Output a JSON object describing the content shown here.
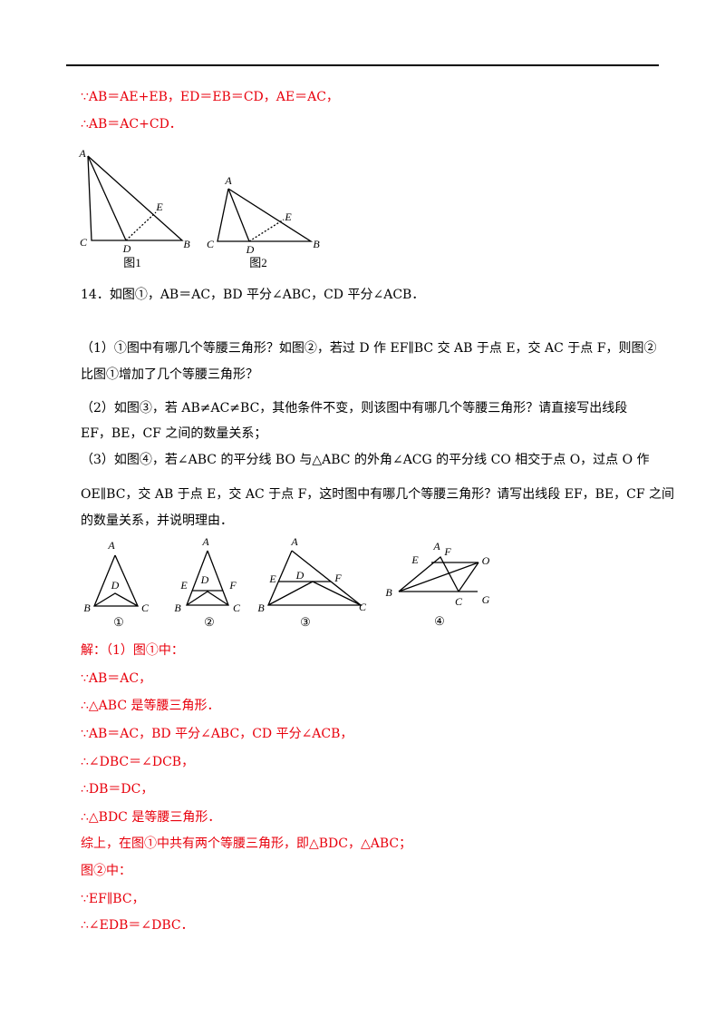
{
  "top_solution": [
    "∵AB＝AE+EB，ED＝EB＝CD，AE＝AC，",
    "∴AB＝AC+CD．"
  ],
  "figures_a": [
    {
      "caption": "图1",
      "labels": [
        "A",
        "C",
        "D",
        "B",
        "E"
      ]
    },
    {
      "caption": "图2",
      "labels": [
        "A",
        "C",
        "D",
        "B",
        "E"
      ]
    }
  ],
  "problem": {
    "stem": "14．如图①，AB＝AC，BD 平分∠ABC，CD 平分∠ACB．",
    "lines": [
      "（1）①图中有哪几个等腰三角形？如图②，若过 D 作 EF∥BC 交 AB 于点 E，交 AC 于点 F，则图②",
      "比图①增加了几个等腰三角形？",
      "（2）如图③，若 AB≠AC≠BC，其他条件不变，则该图中有哪几个等腰三角形？请直接写出线段",
      "EF，BE，CF 之间的数量关系；",
      "（3）如图④，若∠ABC 的平分线 BO 与△ABC 的外角∠ACG 的平分线 CO 相交于点 O，过点 O 作",
      "OE∥BC，交 AB 于点 E，交 AC 于点 F，这时图中有哪几个等腰三角形？请写出线段 EF，BE，CF 之间",
      "的数量关系，并说明理由．"
    ]
  },
  "figures_b": [
    {
      "caption": "①",
      "labels": [
        "A",
        "D",
        "B",
        "C"
      ]
    },
    {
      "caption": "②",
      "labels": [
        "A",
        "E",
        "D",
        "F",
        "B",
        "C"
      ]
    },
    {
      "caption": "③",
      "labels": [
        "A",
        "E",
        "D",
        "F",
        "B",
        "C"
      ]
    },
    {
      "caption": "④",
      "labels": [
        "E",
        "A",
        "F",
        "O",
        "B",
        "C",
        "G"
      ]
    }
  ],
  "solution": [
    "解：（1）图①中：",
    "∵AB＝AC，",
    "∴△ABC 是等腰三角形．",
    "∵AB＝AC，BD 平分∠ABC，CD 平分∠ACB，",
    "∴∠DBC＝∠DCB，",
    "∴DB＝DC，",
    "∴△BDC 是等腰三角形．",
    "综上，在图①中共有两个等腰三角形，即△BDC，△ABC；",
    "图②中：",
    "∵EF∥BC，",
    "∴∠EDB＝∠DBC．"
  ]
}
